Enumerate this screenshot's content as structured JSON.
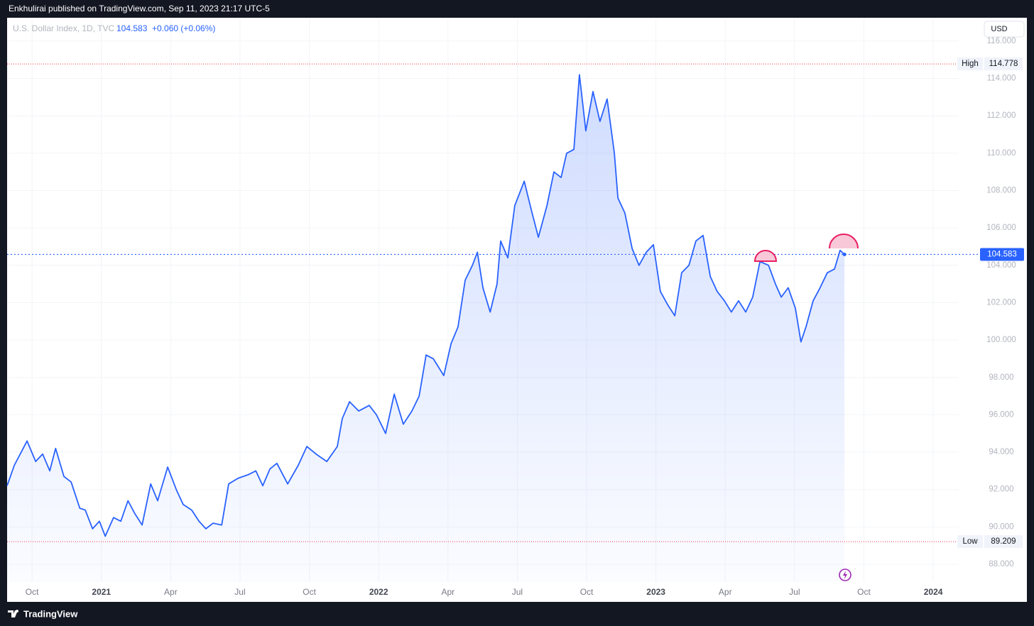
{
  "header": {
    "text": "Enkhulirai published on TradingView.com, Sep 11, 2023 21:17 UTC-5"
  },
  "chart_data": {
    "type": "area",
    "title": "U.S. Dollar Index, 1D, TVC",
    "last_price": 104.583,
    "change": "+0.060 (+0.06%)",
    "currency": "USD",
    "color": "#2962ff",
    "grid": true,
    "xlim": [
      2020.66,
      2024.092
    ],
    "ylim": [
      87.05,
      117.25
    ],
    "xticks": [
      {
        "value": 2020.75,
        "label": "Oct"
      },
      2021,
      {
        "value": 2021.25,
        "label": "Apr"
      },
      {
        "value": 2021.5,
        "label": "Jul"
      },
      {
        "value": 2021.75,
        "label": "Oct"
      },
      2022,
      {
        "value": 2022.25,
        "label": "Apr"
      },
      {
        "value": 2022.5,
        "label": "Jul"
      },
      {
        "value": 2022.75,
        "label": "Oct"
      },
      2023,
      {
        "value": 2023.25,
        "label": "Apr"
      },
      {
        "value": 2023.5,
        "label": "Jul"
      },
      {
        "value": 2023.75,
        "label": "Oct"
      },
      2024
    ],
    "yticks": [
      {
        "value": 88,
        "label": "88.000"
      },
      {
        "value": 90,
        "label": "90.000"
      },
      {
        "value": 92,
        "label": "92.000"
      },
      {
        "value": 94,
        "label": "94.000"
      },
      {
        "value": 96,
        "label": "96.000"
      },
      {
        "value": 98,
        "label": "98.000"
      },
      {
        "value": 100,
        "label": "100.000"
      },
      {
        "value": 102,
        "label": "102.000"
      },
      {
        "value": 104,
        "label": "104.000"
      },
      {
        "value": 106,
        "label": "106.000"
      },
      {
        "value": 108,
        "label": "108.000"
      },
      {
        "value": 110,
        "label": "110.000"
      },
      {
        "value": 112,
        "label": "112.000"
      },
      {
        "value": 114,
        "label": "114.000"
      },
      {
        "value": 116,
        "label": "116.000"
      }
    ],
    "high": {
      "label": "High",
      "value": 114.778
    },
    "low": {
      "label": "Low",
      "value": 89.209
    },
    "x": [
      2020.66,
      2020.686,
      2020.732,
      2020.763,
      2020.788,
      2020.814,
      2020.835,
      2020.865,
      2020.891,
      2020.922,
      2020.942,
      2020.968,
      2020.993,
      2021.014,
      2021.044,
      2021.07,
      2021.096,
      2021.121,
      2021.147,
      2021.178,
      2021.203,
      2021.239,
      2021.27,
      2021.295,
      2021.326,
      2021.352,
      2021.377,
      2021.403,
      2021.434,
      2021.459,
      2021.493,
      2021.531,
      2021.557,
      2021.582,
      2021.608,
      2021.633,
      2021.672,
      2021.71,
      2021.741,
      2021.774,
      2021.813,
      2021.851,
      2021.869,
      2021.895,
      2021.928,
      2021.966,
      2021.992,
      2022.025,
      2022.056,
      2022.089,
      2022.12,
      2022.146,
      2022.171,
      2022.197,
      2022.235,
      2022.261,
      2022.286,
      2022.312,
      2022.338,
      2022.356,
      2022.376,
      2022.402,
      2022.427,
      2022.44,
      2022.466,
      2022.491,
      2022.525,
      2022.55,
      2022.576,
      2022.607,
      2022.632,
      2022.658,
      2022.678,
      2022.704,
      2022.724,
      2022.747,
      2022.773,
      2022.798,
      2022.824,
      2022.85,
      2022.863,
      2022.888,
      2022.914,
      2022.939,
      2022.965,
      2022.991,
      2023.016,
      2023.042,
      2023.068,
      2023.093,
      2023.119,
      2023.144,
      2023.17,
      2023.196,
      2023.221,
      2023.247,
      2023.272,
      2023.298,
      2023.324,
      2023.349,
      2023.375,
      2023.406,
      2023.431,
      2023.452,
      2023.477,
      2023.503,
      2023.523,
      2023.541,
      2023.567,
      2023.592,
      2023.618,
      2023.644,
      2023.664,
      2023.68
    ],
    "values": [
      92.2,
      93.3,
      94.6,
      93.5,
      93.9,
      93.0,
      94.2,
      92.7,
      92.4,
      91.0,
      90.9,
      89.9,
      90.3,
      89.5,
      90.5,
      90.3,
      91.4,
      90.7,
      90.1,
      92.3,
      91.4,
      93.2,
      92.0,
      91.2,
      90.9,
      90.3,
      89.9,
      90.2,
      90.1,
      92.3,
      92.6,
      92.8,
      93.0,
      92.2,
      93.1,
      93.4,
      92.3,
      93.3,
      94.3,
      93.9,
      93.5,
      94.3,
      95.8,
      96.7,
      96.2,
      96.5,
      96.0,
      95.0,
      97.1,
      95.5,
      96.2,
      97.0,
      99.2,
      99.0,
      98.1,
      99.8,
      100.7,
      103.2,
      104.0,
      104.7,
      102.8,
      101.5,
      103.0,
      105.3,
      104.4,
      107.2,
      108.5,
      107.0,
      105.5,
      107.2,
      109.0,
      108.7,
      110.0,
      110.2,
      114.2,
      111.2,
      113.3,
      111.7,
      112.9,
      110.0,
      107.6,
      106.8,
      104.9,
      104.0,
      104.7,
      105.1,
      102.6,
      101.9,
      101.3,
      103.6,
      104.0,
      105.3,
      105.6,
      103.4,
      102.6,
      102.1,
      101.5,
      102.1,
      101.5,
      102.3,
      104.2,
      104.0,
      103.0,
      102.3,
      102.8,
      101.7,
      99.9,
      100.7,
      102.1,
      102.8,
      103.6,
      103.8,
      104.8,
      104.583
    ]
  },
  "footer": {
    "brand": "TradingView"
  }
}
